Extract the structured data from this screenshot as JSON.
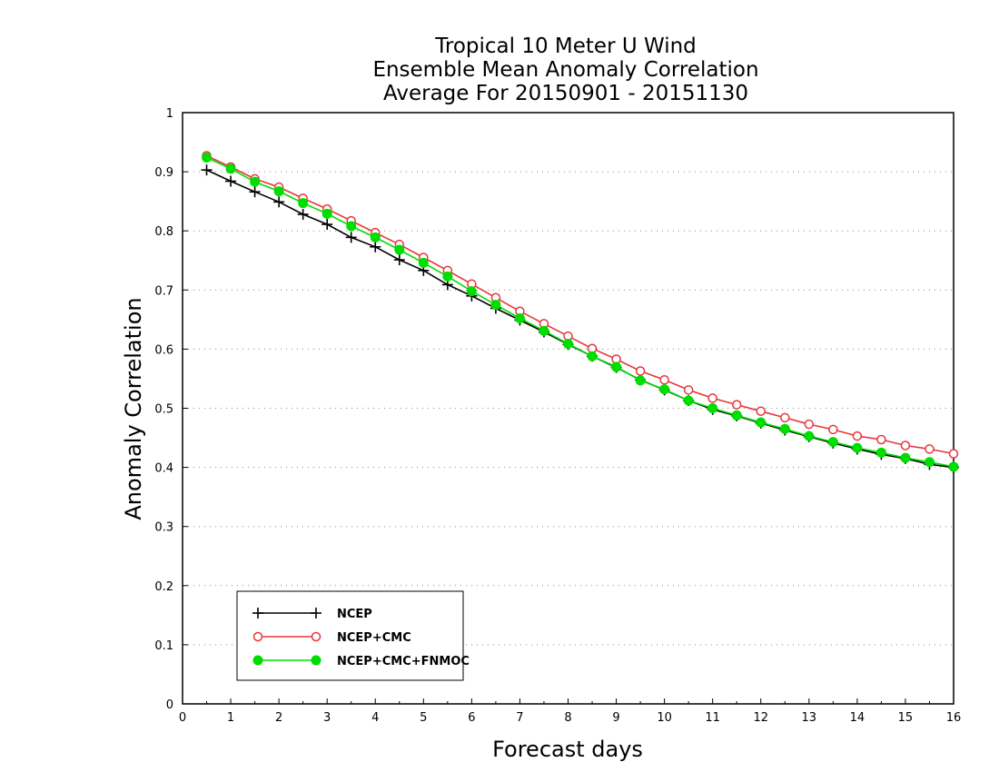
{
  "chart_data": {
    "type": "line",
    "title": [
      "Tropical 10 Meter U Wind",
      "Ensemble Mean Anomaly Correlation",
      "Average For 20150901 - 20151130"
    ],
    "xlabel": "Forecast days",
    "ylabel": "Anomaly Correlation",
    "xlim": [
      0,
      16
    ],
    "ylim": [
      0,
      1
    ],
    "xticks": [
      "0",
      "1",
      "2",
      "3",
      "4",
      "5",
      "6",
      "7",
      "8",
      "9",
      "10",
      "11",
      "12",
      "13",
      "14",
      "15",
      "16"
    ],
    "yticks": [
      "0",
      "0.1",
      "0.2",
      "0.3",
      "0.4",
      "0.5",
      "0.6",
      "0.7",
      "0.8",
      "0.9",
      "1"
    ],
    "grid": "horizontal-dotted",
    "legend_position": "bottom-left",
    "x": [
      0.5,
      1,
      1.5,
      2,
      2.5,
      3,
      3.5,
      4,
      4.5,
      5,
      5.5,
      6,
      6.5,
      7,
      7.5,
      8,
      8.5,
      9,
      9.5,
      10,
      10.5,
      11,
      11.5,
      12,
      12.5,
      13,
      13.5,
      14,
      14.5,
      15,
      15.5,
      16
    ],
    "series": [
      {
        "name": "NCEP",
        "color": "#000000",
        "marker": "plus",
        "values": [
          0.903,
          0.884,
          0.866,
          0.849,
          0.828,
          0.811,
          0.789,
          0.773,
          0.751,
          0.733,
          0.709,
          0.69,
          0.669,
          0.649,
          0.629,
          0.608,
          0.588,
          0.569,
          0.548,
          0.531,
          0.513,
          0.498,
          0.487,
          0.475,
          0.463,
          0.452,
          0.441,
          0.431,
          0.422,
          0.415,
          0.405,
          0.4
        ]
      },
      {
        "name": "NCEP+CMC",
        "color": "#e8363b",
        "marker": "open-circle",
        "values": [
          0.927,
          0.908,
          0.888,
          0.874,
          0.855,
          0.837,
          0.817,
          0.797,
          0.777,
          0.755,
          0.733,
          0.71,
          0.687,
          0.664,
          0.643,
          0.622,
          0.601,
          0.583,
          0.563,
          0.548,
          0.531,
          0.517,
          0.506,
          0.495,
          0.484,
          0.473,
          0.464,
          0.453,
          0.447,
          0.437,
          0.431,
          0.423
        ]
      },
      {
        "name": "NCEP+CMC+FNMOC",
        "color": "#00dd00",
        "marker": "filled-circle",
        "values": [
          0.924,
          0.905,
          0.883,
          0.867,
          0.847,
          0.829,
          0.808,
          0.789,
          0.768,
          0.746,
          0.723,
          0.698,
          0.675,
          0.652,
          0.631,
          0.609,
          0.588,
          0.57,
          0.547,
          0.532,
          0.513,
          0.5,
          0.488,
          0.476,
          0.465,
          0.453,
          0.443,
          0.433,
          0.425,
          0.416,
          0.409,
          0.401
        ]
      }
    ]
  }
}
